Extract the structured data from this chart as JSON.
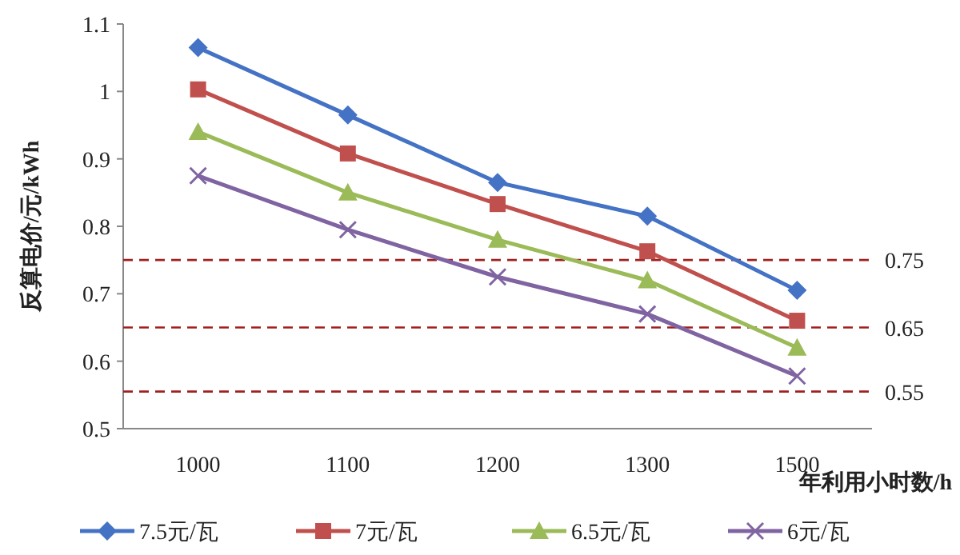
{
  "chart_data": {
    "type": "line",
    "ylabel": "反算电价/元/kWh",
    "xlabel": "年利用小时数/h",
    "categories": [
      "1000",
      "1100",
      "1200",
      "1300",
      "1500"
    ],
    "ylim": [
      0.5,
      1.1
    ],
    "yticks": [
      {
        "value": 0.5,
        "label": "0.5"
      },
      {
        "value": 0.6,
        "label": "0.6"
      },
      {
        "value": 0.7,
        "label": "0.7"
      },
      {
        "value": 0.8,
        "label": "0.8"
      },
      {
        "value": 0.9,
        "label": "0.9"
      },
      {
        "value": 1,
        "label": "1"
      },
      {
        "value": 1.1,
        "label": "1.1"
      }
    ],
    "series": [
      {
        "name": "7.5元/瓦",
        "color": "#4472c4",
        "marker": "diamond",
        "values": [
          1.065,
          0.965,
          0.865,
          0.815,
          0.705
        ]
      },
      {
        "name": "7元/瓦",
        "color": "#c0504d",
        "marker": "square",
        "values": [
          1.003,
          0.908,
          0.833,
          0.763,
          0.66
        ]
      },
      {
        "name": "6.5元/瓦",
        "color": "#9bbb59",
        "marker": "triangle",
        "values": [
          0.94,
          0.85,
          0.78,
          0.72,
          0.62
        ]
      },
      {
        "name": "6元/瓦",
        "color": "#8064a2",
        "marker": "cross",
        "values": [
          0.875,
          0.795,
          0.725,
          0.67,
          0.578
        ]
      }
    ],
    "ref_lines": [
      {
        "axis": "y",
        "value": 0.75,
        "label": "0.75",
        "color": "#a02020",
        "line_style": "dashed"
      },
      {
        "axis": "y",
        "value": 0.65,
        "label": "0.65",
        "color": "#a02020",
        "line_style": "dashed"
      },
      {
        "axis": "y",
        "value": 0.555,
        "label": "0.55",
        "color": "#a02020",
        "line_style": "dashed"
      }
    ],
    "legend": "bottom",
    "grid": false
  }
}
